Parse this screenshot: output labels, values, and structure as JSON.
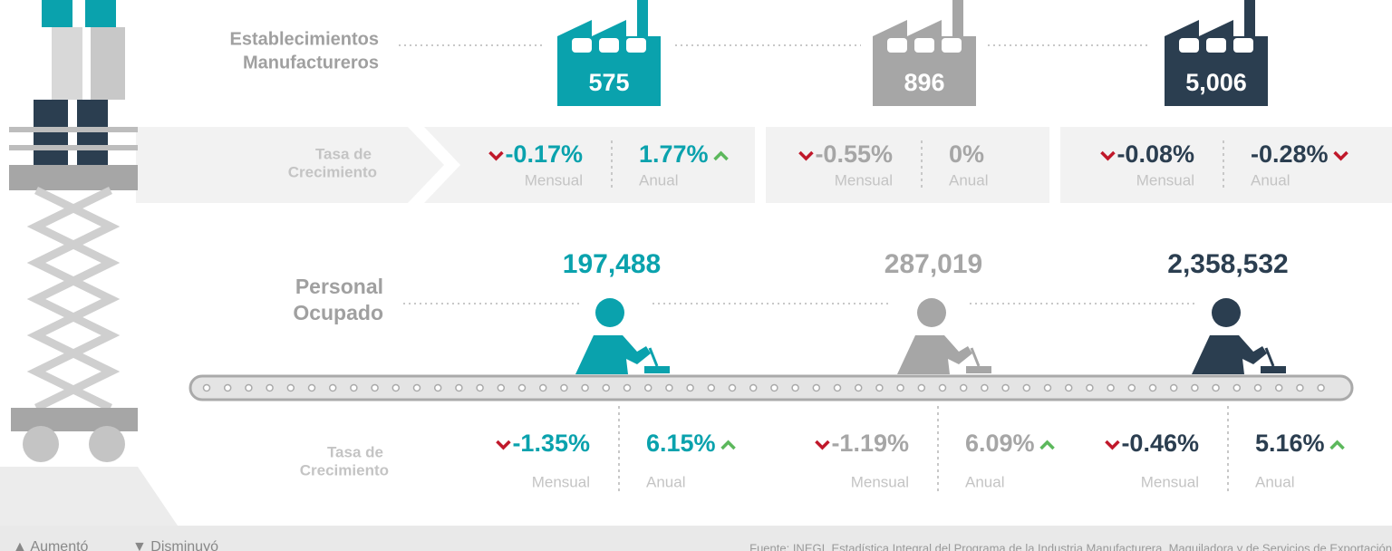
{
  "labels": {
    "establishments": [
      "Establecimientos",
      "Manufactureros"
    ],
    "rate": [
      "Tasa de",
      "Crecimiento"
    ],
    "personnel": [
      "Personal",
      "Ocupado"
    ],
    "monthly": "Mensual",
    "annual": "Anual"
  },
  "groups": [
    {
      "color": "#0aa2ad",
      "establishments": "575",
      "establishments_monthly": {
        "value": "-0.17%",
        "trend": "down"
      },
      "establishments_annual": {
        "value": "1.77%",
        "trend": "up"
      },
      "personnel": "197,488",
      "personnel_monthly": {
        "value": "-1.35%",
        "trend": "down"
      },
      "personnel_annual": {
        "value": "6.15%",
        "trend": "up"
      }
    },
    {
      "color": "#a6a6a6",
      "establishments": "896",
      "establishments_monthly": {
        "value": "-0.55%",
        "trend": "down"
      },
      "establishments_annual": {
        "value": "0%",
        "trend": "none"
      },
      "personnel": "287,019",
      "personnel_monthly": {
        "value": "-1.19%",
        "trend": "down"
      },
      "personnel_annual": {
        "value": "6.09%",
        "trend": "up"
      }
    },
    {
      "color": "#2b3e50",
      "establishments": "5,006",
      "establishments_monthly": {
        "value": "-0.08%",
        "trend": "down"
      },
      "establishments_annual": {
        "value": "-0.28%",
        "trend": "down"
      },
      "personnel": "2,358,532",
      "personnel_monthly": {
        "value": "-0.46%",
        "trend": "down"
      },
      "personnel_annual": {
        "value": "5.16%",
        "trend": "up"
      }
    }
  ],
  "legend": {
    "up": "Aumentó",
    "down": "Disminuyó"
  },
  "source": "Fuente: INEGI. Estadística Integral del Programa de la Industria Manufacturera, Maquiladora y de Servicios de Exportación"
}
